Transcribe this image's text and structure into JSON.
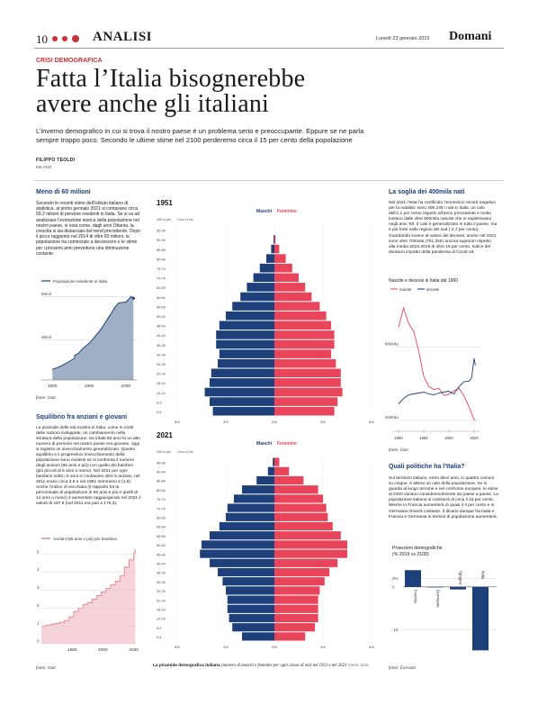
{
  "header": {
    "page_number": "10",
    "section": "ANALISI",
    "date": "Lunedì 23 gennaio 2023",
    "masthead": "Domani"
  },
  "article": {
    "kicker": "CRISI DEMOGRAFICA",
    "headline_line1": "Fatta l’Italia bisognerebbe",
    "headline_line2": "avere anche gli italiani",
    "standfirst_line1": "L’inverno demografico in cui si trova il nostro paese è un problema serio e preoccupante. Eppure se ne parla",
    "standfirst_line2": "sempre troppo poco. Secondo le ultime stime nel 2100 perderemo circa il 15 per cento della popolazione",
    "author": "FILIPPO TEOLDI",
    "location": "MILANO"
  },
  "left_col": {
    "box1_title": "Meno di 60 milioni",
    "box1_text": "Secondo le recenti stime dell’Istituto italiano di statistica, al primo gennaio 2021 si contavano circa 59,2 milioni di persone residenti in Italia. Se si va ad analizzare l’evoluzione storica della popolazione nel nostro paese, si nota come, dagli anni Ottanta, la crescita si sia distaccata dal trend precedente. Dopo il picco raggiunto nel 2014 di oltre 60 milioni, la popolazione ha cominciato a decrescere e le stime per i prossimi anni prevedono una diminuzione costante.",
    "box1_source": "fonte: Istat",
    "box2_title": "Squilibrio fra anziani e giovani",
    "box2_text": "La piramide delle età mostra in Italia, come in molti delle nazioni sviluppate, un cambiamento nella struttura della popolazione. Se infatti 50 anni fa un alto numero di persone nel nostro paese era giovane, oggi si registra un invecchiamento generalizzato. Questo squilibrio e il progressivo invecchiamento della popolazione sono evidenti se si confronta il numero degli anziani (65 anni e più) con quello dei bambini (più piccoli di 6 anni o meno). Nel 2021 per ogni bambino sotto i 6 anni si contavano oltre 5 anziani, nel 2011 erano circa 3,8 e nel 1981 nemmeno 2 (1,8). Anche l’indice di vecchiaia (il rapporto tra la percentuale di popolazione di 65 anni e più e quelli di 14 anni o meno) è aumentato raggiungendo nel 2021 il valore di 187,6 (nel 2011 era pari a 179,3).",
    "box2_source": "fonte: Istat"
  },
  "right_col": {
    "box1_title": "La soglia dei 400mila nati",
    "box1_text": "Nel 2021 l’Istat ha certificato l’ennesimo record negativo per la natalità: sono 400.249 i nati in Italia, un calo dell’1,1 per cento rispetto all’anno precedente e molto lontano dalle oltre 800mila nascite che si registravano negli anni ’60. Il calo è generalizzato in tutto il paese, ma è più forte nelle regioni del sud (-2,7 per cento). Guardando invece al valore dei decessi, anche nel 2021 sono oltre 700mila (701.346) ancora superiori rispetto alla media 2015-2019 di oltre 19 per cento. Indice del duraturo impatto della pandemia di Covid-19.",
    "box1_source": "fonte: Istat",
    "box2_title": "Quali politiche ha l’Italia?",
    "box2_text": "Sul territorio italiano, entro dieci anni, in quattro comuni su cinque, è atteso un calo della popolazione. Se si guarda al lungo termine e nel confronto europeo, le stime al 2100 variano considerevolmente da paese a paese. La popolazione italiana si contrarrà di circa il 15 per cento. Mentre in Francia aumenterà di quasi il 4 per cento e in Germania rimarrà costante. Il divario dunque fra Italia e Francia e Germania in termini di popolazione aumenterà.",
    "box2_source": "fonte: Eurostat"
  },
  "pyramid_caption_bold": "La piramide demografica italiana",
  "pyramid_caption_italic": "(numero di maschi e femmine per ogni classe di età) nel 1951 e nel 2021",
  "pyramid_caption_source": "FONTE: ISTAT",
  "chart_data": [
    {
      "type": "line",
      "title": "Popolazione residente in Italia",
      "x_ticks": [
        "1800",
        "1900",
        "2000"
      ],
      "y_ticks": [
        "60mil",
        "35mil"
      ],
      "x": [
        1800,
        1820,
        1840,
        1860,
        1861,
        1871,
        1881,
        1901,
        1911,
        1921,
        1931,
        1936,
        1951,
        1961,
        1971,
        1981,
        1991,
        2001,
        2011,
        2014,
        2021
      ],
      "values": [
        18.1,
        19.7,
        21.9,
        24.5,
        26.3,
        27.3,
        29.8,
        33.4,
        35.8,
        38.4,
        41.0,
        42.4,
        47.5,
        50.6,
        54.1,
        56.6,
        56.8,
        57.0,
        59.4,
        60.3,
        59.2
      ],
      "unit": "milioni",
      "ylim": [
        12,
        63
      ],
      "color": "#1d3f7a"
    },
    {
      "type": "line",
      "title": "Anziani (65 anni o più) per bambino",
      "x_ticks": [
        "1980",
        "2000",
        "2020"
      ],
      "y_ticks": [
        "5",
        "4",
        "3",
        "2",
        "1",
        "0"
      ],
      "x": [
        1960,
        1963,
        1966,
        1969,
        1972,
        1975,
        1978,
        1981,
        1984,
        1987,
        1990,
        1993,
        1996,
        1999,
        2002,
        2005,
        2008,
        2011,
        2014,
        2017,
        2020,
        2021
      ],
      "values": [
        1.0,
        1.05,
        1.1,
        1.15,
        1.2,
        1.3,
        1.5,
        1.8,
        2.0,
        2.2,
        2.3,
        2.5,
        2.7,
        2.9,
        3.1,
        3.3,
        3.5,
        3.8,
        4.3,
        4.7,
        5.1,
        5.3
      ],
      "ylim": [
        0,
        5.6
      ],
      "color": "#e68a96"
    },
    {
      "type": "bar",
      "title": "1951",
      "legend": [
        "Maschi",
        "Femmine"
      ],
      "age_label_header": "100 e più",
      "age_header_note": "Classi di età",
      "categories": [
        "95-99",
        "90-94",
        "85-89",
        "80-84",
        "75-79",
        "70-74",
        "65-69",
        "60-64",
        "55-59",
        "50-54",
        "45-49",
        "40-44",
        "35-39",
        "30-34",
        "25-29",
        "20-24",
        "15-19",
        "10-14",
        "5-9",
        "0-4"
      ],
      "maschi_pct": [
        0.0,
        0.05,
        0.2,
        0.5,
        0.9,
        1.3,
        1.7,
        2.1,
        2.6,
        3.0,
        3.4,
        3.6,
        3.6,
        3.4,
        3.5,
        3.9,
        4.0,
        4.3,
        4.0,
        3.8
      ],
      "femmine_pct": [
        0.0,
        0.07,
        0.3,
        0.7,
        1.1,
        1.5,
        1.9,
        2.3,
        2.8,
        3.2,
        3.5,
        3.7,
        3.7,
        3.5,
        3.8,
        4.1,
        4.1,
        4.2,
        3.9,
        3.7
      ],
      "x_ticks": [
        "6%",
        "3%",
        "0%",
        "3%",
        "6%"
      ],
      "colors": {
        "maschi": "#1d3f7a",
        "femmine": "#e8445a"
      }
    },
    {
      "type": "bar",
      "title": "2021",
      "legend": [
        "Maschi",
        "Femmine"
      ],
      "age_label_header": "100 e più",
      "age_header_note": "Classi di età",
      "categories": [
        "95-99",
        "90-94",
        "85-89",
        "80-84",
        "75-79",
        "70-74",
        "65-69",
        "60-64",
        "55-59",
        "50-54",
        "45-49",
        "40-44",
        "35-39",
        "30-34",
        "25-29",
        "20-24",
        "15-19",
        "10-14",
        "5-9",
        "0-4"
      ],
      "maschi_pct": [
        0.1,
        0.4,
        1.1,
        2.0,
        2.5,
        2.9,
        3.0,
        3.4,
        4.0,
        4.5,
        4.6,
        4.0,
        3.5,
        3.2,
        3.0,
        2.9,
        2.9,
        2.8,
        2.6,
        2.0
      ],
      "femmine_pct": [
        0.3,
        0.9,
        1.8,
        2.7,
        3.0,
        3.2,
        3.3,
        3.6,
        4.1,
        4.5,
        4.5,
        3.9,
        3.4,
        3.1,
        2.8,
        2.7,
        2.7,
        2.7,
        2.5,
        1.9
      ],
      "x_ticks": [
        "6%",
        "3%",
        "0%",
        "3%",
        "6%"
      ],
      "colors": {
        "maschi": "#1d3f7a",
        "femmine": "#e8445a"
      }
    },
    {
      "type": "line",
      "title": "Nascite e decessi in Italia dal 1960",
      "series": [
        {
          "name": "nascite",
          "color": "#e8445a",
          "x": [
            1960,
            1964,
            1968,
            1972,
            1976,
            1980,
            1984,
            1988,
            1992,
            1996,
            2000,
            2004,
            2008,
            2012,
            2016,
            2020,
            2021
          ],
          "values": [
            910,
            1016,
            930,
            888,
            781,
            640,
            587,
            569,
            575,
            537,
            543,
            562,
            576,
            534,
            473,
            405,
            400
          ]
        },
        {
          "name": "decessi",
          "color": "#1d3f7a",
          "x": [
            1960,
            1964,
            1968,
            1972,
            1976,
            1980,
            1984,
            1988,
            1992,
            1996,
            2000,
            2004,
            2008,
            2012,
            2016,
            2018,
            2020,
            2021
          ],
          "values": [
            490,
            520,
            540,
            545,
            550,
            555,
            545,
            540,
            550,
            555,
            560,
            545,
            585,
            612,
            615,
            633,
            740,
            701
          ]
        }
      ],
      "y_ticks": [
        "800mila",
        "400mila"
      ],
      "x_ticks": [
        "1960",
        "1980",
        "2000",
        "2020"
      ],
      "ylim": [
        380,
        1040
      ]
    },
    {
      "type": "bar",
      "title": "Proiezioni demografiche",
      "subtitle": "(% 2019 vs 2100)",
      "categories": [
        "Francia",
        "Germania",
        "Spagna",
        "Italia"
      ],
      "values": [
        3.9,
        0.0,
        -0.6,
        -14.8
      ],
      "y_ticks": [
        "2%",
        "0",
        "-10"
      ],
      "ylim": [
        -16,
        5
      ],
      "color": "#1d3f7a"
    }
  ]
}
